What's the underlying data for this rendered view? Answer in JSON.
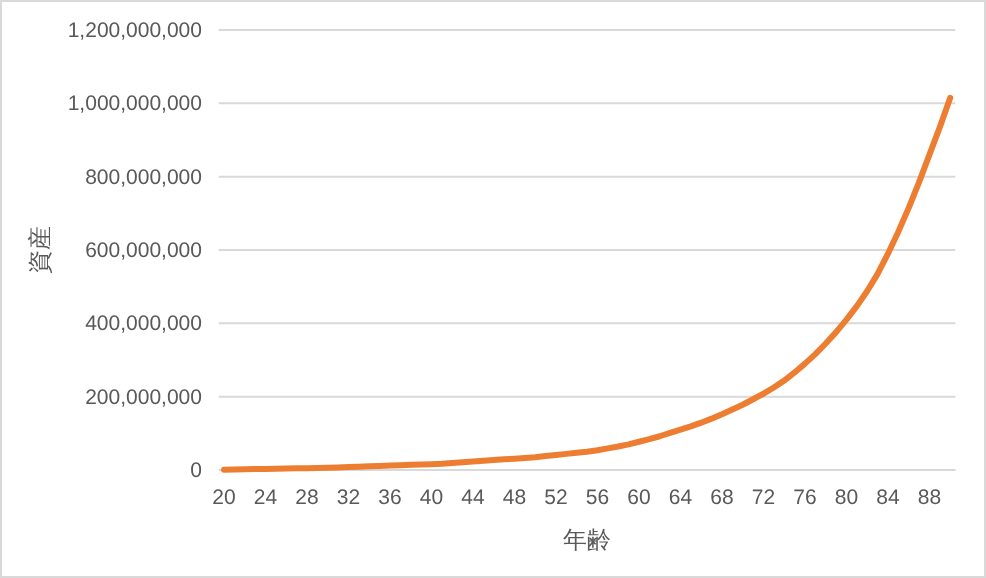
{
  "chart_data": {
    "type": "line",
    "xlabel": "年齢",
    "ylabel": "資産",
    "categories": [
      "20",
      null,
      null,
      null,
      "24",
      null,
      null,
      null,
      "28",
      null,
      null,
      null,
      "32",
      null,
      null,
      null,
      "36",
      null,
      null,
      null,
      "40",
      null,
      null,
      null,
      "44",
      null,
      null,
      null,
      "48",
      null,
      null,
      null,
      "52",
      null,
      null,
      null,
      "56",
      null,
      null,
      null,
      "60",
      null,
      null,
      null,
      "64",
      null,
      null,
      null,
      "68",
      null,
      null,
      null,
      "72",
      null,
      null,
      null,
      "76",
      null,
      null,
      null,
      "80",
      null,
      null,
      null,
      "84",
      null,
      null,
      null,
      "88",
      null,
      null
    ],
    "series": [
      {
        "color": "#ed7d31",
        "values": [
          1000000,
          1500000,
          2000000,
          2500000,
          3000000,
          3500000,
          4000000,
          4500000,
          5000000,
          5500000,
          6000000,
          7000000,
          8000000,
          9000000,
          10000000,
          11000000,
          12000000,
          13000000,
          14000000,
          15000000,
          16000000,
          17000000,
          19000000,
          21000000,
          23000000,
          25000000,
          27000000,
          29000000,
          31000000,
          33000000,
          35000000,
          38000000,
          41000000,
          44000000,
          47000000,
          50000000,
          54000000,
          59000000,
          64000000,
          70000000,
          77000000,
          84000000,
          92000000,
          101000000,
          110000000,
          119000000,
          129000000,
          140000000,
          152000000,
          165000000,
          178000000,
          193000000,
          208000000,
          225000000,
          244000000,
          266000000,
          290000000,
          316000000,
          345000000,
          376000000,
          410000000,
          447000000,
          488000000,
          535000000,
          590000000,
          650000000,
          715000000,
          785000000,
          860000000,
          935000000,
          1015000000
        ]
      }
    ],
    "ylim": [
      0,
      1200000000
    ],
    "yticks": [
      0,
      {
        "value": 200000000,
        "label": "200,000,000"
      },
      {
        "value": 400000000,
        "label": "400,000,000"
      },
      {
        "value": 600000000,
        "label": "600,000,000"
      },
      {
        "value": 800000000,
        "label": "800,000,000"
      },
      {
        "value": 1000000000,
        "label": "1,000,000,000"
      },
      {
        "value": 1200000000,
        "label": "1,200,000,000"
      }
    ],
    "grid": "y",
    "marker": "none",
    "line_style": "solid"
  }
}
